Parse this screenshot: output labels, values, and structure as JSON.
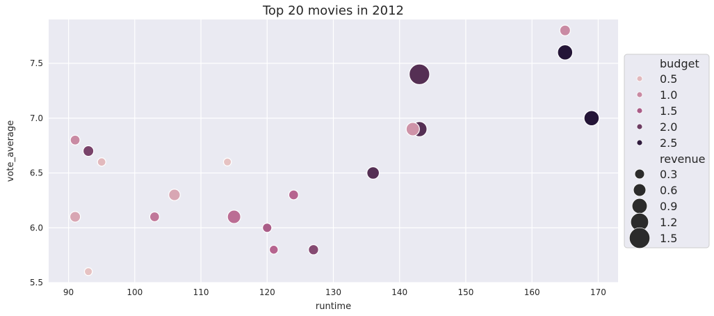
{
  "chart_data": {
    "type": "scatter",
    "title": "Top 20 movies in 2012",
    "xlabel": "runtime",
    "ylabel": "vote_average",
    "xlim": [
      87,
      173
    ],
    "ylim": [
      5.5,
      7.9
    ],
    "xticks": [
      90,
      100,
      110,
      120,
      130,
      140,
      150,
      160,
      170
    ],
    "yticks": [
      5.5,
      6.0,
      6.5,
      7.0,
      7.5
    ],
    "grid": true,
    "legend_position": "right",
    "hue_variable": "budget",
    "size_variable": "revenue",
    "budget_legend": [
      0.5,
      1.0,
      1.5,
      2.0,
      2.5
    ],
    "revenue_legend": [
      0.3,
      0.6,
      0.9,
      1.2,
      1.5
    ],
    "color_scale": {
      "low": "#f0d5cc",
      "mid": "#b6648f",
      "high": "#241537",
      "range": [
        0.2,
        2.6
      ]
    },
    "points": [
      {
        "runtime": 165,
        "vote_average": 7.8,
        "budget": 1.0,
        "revenue": 0.4
      },
      {
        "runtime": 165,
        "vote_average": 7.6,
        "budget": 2.6,
        "revenue": 0.9
      },
      {
        "runtime": 143,
        "vote_average": 7.4,
        "budget": 2.2,
        "revenue": 1.5
      },
      {
        "runtime": 169,
        "vote_average": 7.0,
        "budget": 2.6,
        "revenue": 0.9
      },
      {
        "runtime": 143,
        "vote_average": 6.9,
        "budget": 2.2,
        "revenue": 0.9
      },
      {
        "runtime": 142,
        "vote_average": 6.9,
        "budget": 0.9,
        "revenue": 0.7
      },
      {
        "runtime": 91,
        "vote_average": 6.8,
        "budget": 1.0,
        "revenue": 0.3
      },
      {
        "runtime": 93,
        "vote_average": 6.7,
        "budget": 1.9,
        "revenue": 0.4
      },
      {
        "runtime": 95,
        "vote_average": 6.6,
        "budget": 0.5,
        "revenue": 0.15
      },
      {
        "runtime": 114,
        "vote_average": 6.6,
        "budget": 0.4,
        "revenue": 0.1
      },
      {
        "runtime": 136,
        "vote_average": 6.5,
        "budget": 2.2,
        "revenue": 0.6
      },
      {
        "runtime": 106,
        "vote_average": 6.3,
        "budget": 0.7,
        "revenue": 0.5
      },
      {
        "runtime": 124,
        "vote_average": 6.3,
        "budget": 1.4,
        "revenue": 0.3
      },
      {
        "runtime": 91,
        "vote_average": 6.1,
        "budget": 0.7,
        "revenue": 0.4
      },
      {
        "runtime": 103,
        "vote_average": 6.1,
        "budget": 1.2,
        "revenue": 0.3
      },
      {
        "runtime": 115,
        "vote_average": 6.1,
        "budget": 1.3,
        "revenue": 0.7
      },
      {
        "runtime": 120,
        "vote_average": 6.0,
        "budget": 1.5,
        "revenue": 0.25
      },
      {
        "runtime": 121,
        "vote_average": 5.8,
        "budget": 1.4,
        "revenue": 0.2
      },
      {
        "runtime": 127,
        "vote_average": 5.8,
        "budget": 1.8,
        "revenue": 0.35
      },
      {
        "runtime": 93,
        "vote_average": 5.6,
        "budget": 0.4,
        "revenue": 0.1
      }
    ]
  }
}
